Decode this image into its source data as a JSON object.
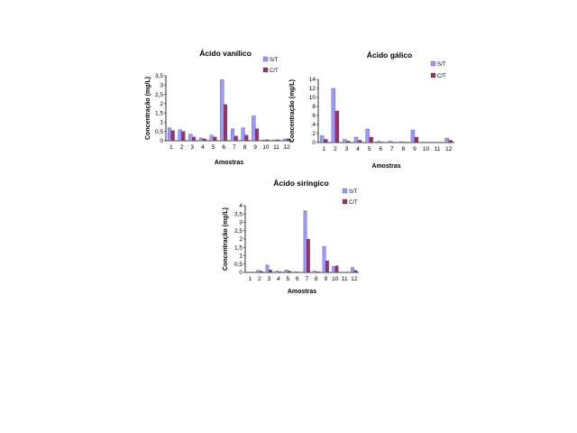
{
  "colors": {
    "st": "#9999ff",
    "ct": "#993366",
    "axis": "#000000"
  },
  "chart_data": [
    {
      "type": "bar",
      "title": "Ácido vanílico",
      "xlabel": "Amostras",
      "ylabel": "Concentração (mg/L)",
      "categories": [
        "1",
        "2",
        "3",
        "4",
        "5",
        "6",
        "7",
        "8",
        "9",
        "10",
        "11",
        "12"
      ],
      "yticks": [
        "0",
        "0,5",
        "1",
        "1,5",
        "2",
        "2,5",
        "3",
        "3,5"
      ],
      "ylim": [
        0,
        3.5
      ],
      "legend": "right",
      "series": [
        {
          "name": "S/T",
          "values": [
            0.7,
            0.6,
            0.35,
            0.15,
            0.3,
            3.3,
            0.65,
            0.7,
            1.35,
            0.05,
            0.05,
            0.1
          ]
        },
        {
          "name": "C/T",
          "values": [
            0.55,
            0.5,
            0.2,
            0.1,
            0.2,
            1.95,
            0.25,
            0.3,
            0.65,
            0.05,
            0.05,
            0.1
          ]
        }
      ]
    },
    {
      "type": "bar",
      "title": "Ácido gálico",
      "xlabel": "Amostras",
      "ylabel": "Concentração (mg/L)",
      "categories": [
        "1",
        "2",
        "3",
        "4",
        "5",
        "6",
        "7",
        "8",
        "9",
        "10",
        "11",
        "12"
      ],
      "yticks": [
        "0",
        "2",
        "4",
        "6",
        "8",
        "10",
        "12",
        "14"
      ],
      "ylim": [
        0,
        14
      ],
      "legend": "right",
      "series": [
        {
          "name": "S/T",
          "values": [
            1.5,
            12.0,
            0.7,
            1.2,
            3.0,
            0.3,
            0.3,
            0.2,
            2.8,
            0.1,
            0.1,
            1.0
          ]
        },
        {
          "name": "C/T",
          "values": [
            0.7,
            7.0,
            0.3,
            0.5,
            1.2,
            0.1,
            0.1,
            0.1,
            1.2,
            0.05,
            0.05,
            0.5
          ]
        }
      ]
    },
    {
      "type": "bar",
      "title": "Ácido siríngico",
      "xlabel": "Amostras",
      "ylabel": "Concentração (mg/L)",
      "categories": [
        "1",
        "2",
        "3",
        "4",
        "5",
        "6",
        "7",
        "8",
        "9",
        "10",
        "11",
        "12"
      ],
      "yticks": [
        "0",
        "0,5",
        "1",
        "1,5",
        "2",
        "2,5",
        "3",
        "3,5",
        "4"
      ],
      "ylim": [
        0,
        4
      ],
      "legend": "right",
      "series": [
        {
          "name": "S/T",
          "values": [
            0.02,
            0.12,
            0.45,
            0.08,
            0.15,
            0.05,
            3.7,
            0.08,
            1.55,
            0.35,
            0.02,
            0.3
          ]
        },
        {
          "name": "C/T",
          "values": [
            0.02,
            0.08,
            0.15,
            0.04,
            0.08,
            0.02,
            2.0,
            0.04,
            0.7,
            0.4,
            0.02,
            0.12
          ]
        }
      ]
    }
  ]
}
